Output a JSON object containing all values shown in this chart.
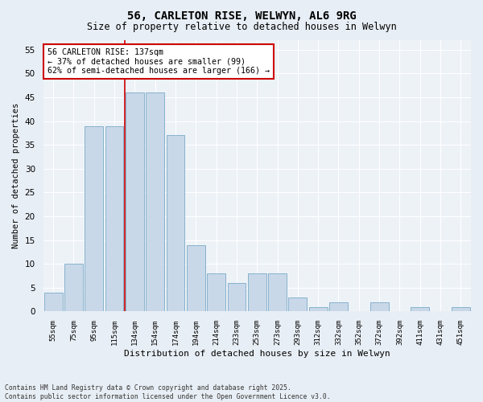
{
  "title": "56, CARLETON RISE, WELWYN, AL6 9RG",
  "subtitle": "Size of property relative to detached houses in Welwyn",
  "xlabel": "Distribution of detached houses by size in Welwyn",
  "ylabel": "Number of detached properties",
  "bar_color": "#c8d8e8",
  "bar_edge_color": "#7aaac8",
  "categories": [
    "55sqm",
    "75sqm",
    "95sqm",
    "115sqm",
    "134sqm",
    "154sqm",
    "174sqm",
    "194sqm",
    "214sqm",
    "233sqm",
    "253sqm",
    "273sqm",
    "293sqm",
    "312sqm",
    "332sqm",
    "352sqm",
    "372sqm",
    "392sqm",
    "411sqm",
    "431sqm",
    "451sqm"
  ],
  "values": [
    4,
    10,
    39,
    39,
    46,
    46,
    37,
    14,
    8,
    6,
    8,
    8,
    3,
    1,
    2,
    0,
    2,
    0,
    1,
    0,
    1
  ],
  "ylim": [
    0,
    57
  ],
  "yticks": [
    0,
    5,
    10,
    15,
    20,
    25,
    30,
    35,
    40,
    45,
    50,
    55
  ],
  "vline_index": 4,
  "vline_color": "#cc0000",
  "annotation_text": "56 CARLETON RISE: 137sqm\n← 37% of detached houses are smaller (99)\n62% of semi-detached houses are larger (166) →",
  "annotation_box_color": "#ffffff",
  "annotation_box_edge": "#cc0000",
  "footer_line1": "Contains HM Land Registry data © Crown copyright and database right 2025.",
  "footer_line2": "Contains public sector information licensed under the Open Government Licence v3.0.",
  "background_color": "#e8eef5",
  "plot_bg_color": "#edf2f7"
}
